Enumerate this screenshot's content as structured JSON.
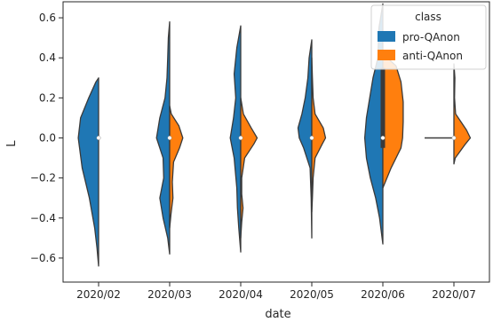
{
  "chart_data": {
    "type": "violin",
    "title": "",
    "xlabel": "date",
    "ylabel": "L",
    "ylim": [
      -0.72,
      0.68
    ],
    "yticks": [
      -0.6,
      -0.4,
      -0.2,
      0.0,
      0.2,
      0.4,
      0.6
    ],
    "ytick_labels": [
      "−0.6",
      "−0.4",
      "−0.2",
      "0.0",
      "0.2",
      "0.4",
      "0.6"
    ],
    "categories": [
      "2020/02",
      "2020/03",
      "2020/04",
      "2020/05",
      "2020/06",
      "2020/07"
    ],
    "grid": false,
    "split": true,
    "legend": {
      "title": "class",
      "placement": "top-right",
      "entries": [
        "pro-QAnon",
        "anti-QAnon"
      ]
    },
    "colors": {
      "pro": "#1f77b4",
      "anti": "#ff7f0e",
      "outline": "#3a3a3a"
    },
    "series": [
      {
        "name": "pro-QAnon",
        "side": "left",
        "violins": [
          {
            "category": "2020/02",
            "profile": [
              [
                -0.64,
                0.0
              ],
              [
                -0.55,
                0.05
              ],
              [
                -0.45,
                0.12
              ],
              [
                -0.3,
                0.28
              ],
              [
                -0.15,
                0.5
              ],
              [
                0.0,
                0.62
              ],
              [
                0.1,
                0.55
              ],
              [
                0.2,
                0.3
              ],
              [
                0.28,
                0.08
              ],
              [
                0.3,
                0.0
              ]
            ]
          },
          {
            "category": "2020/03",
            "profile": [
              [
                -0.58,
                0.0
              ],
              [
                -0.5,
                0.06
              ],
              [
                -0.4,
                0.2
              ],
              [
                -0.3,
                0.3
              ],
              [
                -0.2,
                0.18
              ],
              [
                -0.1,
                0.2
              ],
              [
                0.0,
                0.4
              ],
              [
                0.1,
                0.3
              ],
              [
                0.2,
                0.14
              ],
              [
                0.3,
                0.08
              ],
              [
                0.4,
                0.06
              ],
              [
                0.5,
                0.04
              ],
              [
                0.58,
                0.0
              ]
            ]
          },
          {
            "category": "2020/04",
            "profile": [
              [
                -0.57,
                0.0
              ],
              [
                -0.45,
                0.06
              ],
              [
                -0.35,
                0.1
              ],
              [
                -0.25,
                0.12
              ],
              [
                -0.1,
                0.2
              ],
              [
                0.0,
                0.32
              ],
              [
                0.1,
                0.22
              ],
              [
                0.2,
                0.15
              ],
              [
                0.32,
                0.2
              ],
              [
                0.45,
                0.12
              ],
              [
                0.56,
                0.0
              ]
            ]
          },
          {
            "category": "2020/05",
            "profile": [
              [
                -0.5,
                0.0
              ],
              [
                -0.3,
                0.02
              ],
              [
                -0.15,
                0.05
              ],
              [
                -0.05,
                0.25
              ],
              [
                0.0,
                0.38
              ],
              [
                0.05,
                0.42
              ],
              [
                0.12,
                0.3
              ],
              [
                0.2,
                0.2
              ],
              [
                0.3,
                0.12
              ],
              [
                0.4,
                0.08
              ],
              [
                0.49,
                0.0
              ]
            ]
          },
          {
            "category": "2020/06",
            "profile": [
              [
                -0.53,
                0.0
              ],
              [
                -0.4,
                0.1
              ],
              [
                -0.3,
                0.22
              ],
              [
                -0.2,
                0.38
              ],
              [
                -0.1,
                0.5
              ],
              [
                0.0,
                0.55
              ],
              [
                0.1,
                0.5
              ],
              [
                0.2,
                0.4
              ],
              [
                0.3,
                0.3
              ],
              [
                0.4,
                0.15
              ],
              [
                0.55,
                0.12
              ],
              [
                0.67,
                0.0
              ]
            ]
          },
          {
            "category": "2020/07",
            "profile": [
              [
                0.0,
                0.0
              ]
            ]
          }
        ]
      },
      {
        "name": "anti-QAnon",
        "side": "right",
        "violins": [
          {
            "category": "2020/03",
            "profile": [
              [
                -0.45,
                0.0
              ],
              [
                -0.38,
                0.04
              ],
              [
                -0.3,
                0.1
              ],
              [
                -0.22,
                0.08
              ],
              [
                -0.12,
                0.12
              ],
              [
                -0.05,
                0.3
              ],
              [
                0.0,
                0.4
              ],
              [
                0.06,
                0.28
              ],
              [
                0.12,
                0.05
              ],
              [
                0.16,
                0.0
              ]
            ]
          },
          {
            "category": "2020/04",
            "profile": [
              [
                -0.5,
                0.0
              ],
              [
                -0.42,
                0.03
              ],
              [
                -0.35,
                0.07
              ],
              [
                -0.28,
                0.03
              ],
              [
                -0.2,
                0.03
              ],
              [
                -0.1,
                0.12
              ],
              [
                -0.03,
                0.4
              ],
              [
                0.0,
                0.5
              ],
              [
                0.05,
                0.32
              ],
              [
                0.12,
                0.08
              ],
              [
                0.2,
                0.0
              ]
            ]
          },
          {
            "category": "2020/05",
            "profile": [
              [
                -0.37,
                0.0
              ],
              [
                -0.3,
                0.02
              ],
              [
                -0.2,
                0.04
              ],
              [
                -0.1,
                0.1
              ],
              [
                -0.03,
                0.32
              ],
              [
                0.0,
                0.42
              ],
              [
                0.05,
                0.35
              ],
              [
                0.12,
                0.1
              ],
              [
                0.2,
                0.04
              ],
              [
                0.3,
                0.02
              ],
              [
                0.4,
                0.0
              ]
            ]
          },
          {
            "category": "2020/06",
            "profile": [
              [
                -0.25,
                0.0
              ],
              [
                -0.15,
                0.25
              ],
              [
                -0.05,
                0.55
              ],
              [
                0.0,
                0.6
              ],
              [
                0.08,
                0.62
              ],
              [
                0.18,
                0.62
              ],
              [
                0.28,
                0.55
              ],
              [
                0.36,
                0.4
              ],
              [
                0.42,
                0.0
              ]
            ]
          },
          {
            "category": "2020/07",
            "profile": [
              [
                -0.13,
                0.0
              ],
              [
                -0.1,
                0.04
              ],
              [
                -0.03,
                0.35
              ],
              [
                0.0,
                0.5
              ],
              [
                0.04,
                0.38
              ],
              [
                0.12,
                0.05
              ],
              [
                0.2,
                0.02
              ],
              [
                0.3,
                0.03
              ],
              [
                0.37,
                0.0
              ]
            ]
          }
        ]
      }
    ],
    "medians": [
      0.0,
      0.0,
      0.0,
      0.0,
      0.0,
      0.0
    ],
    "quartiles": [
      {
        "category": "2020/06",
        "q1": -0.05,
        "q3": 0.35
      }
    ]
  }
}
